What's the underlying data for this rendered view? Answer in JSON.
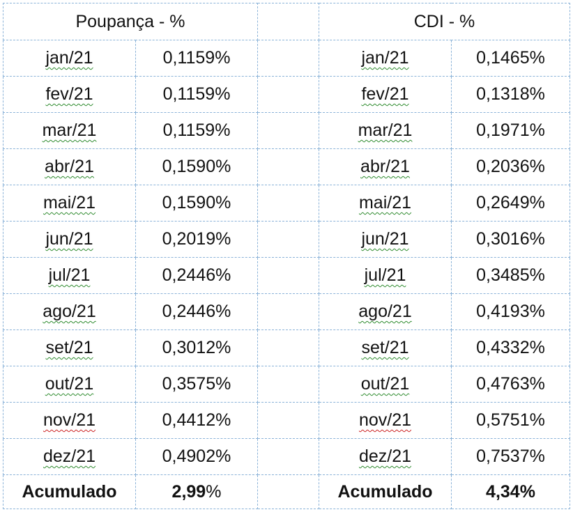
{
  "poupanca": {
    "title": "Poupança - %",
    "rows": [
      {
        "month": "jan/21",
        "value": "0,1159%"
      },
      {
        "month": "fev/21",
        "value": "0,1159%"
      },
      {
        "month": "mar/21",
        "value": "0,1159%"
      },
      {
        "month": "abr/21",
        "value": "0,1590%"
      },
      {
        "month": "mai/21",
        "value": "0,1590%"
      },
      {
        "month": "jun/21",
        "value": "0,2019%"
      },
      {
        "month": "jul/21",
        "value": "0,2446%"
      },
      {
        "month": "ago/21",
        "value": "0,2446%"
      },
      {
        "month": "set/21",
        "value": "0,3012%"
      },
      {
        "month": "out/21",
        "value": "0,3575%"
      },
      {
        "month": "nov/21",
        "value": "0,4412%"
      },
      {
        "month": "dez/21",
        "value": "0,4902%"
      }
    ],
    "total_label": "Acumulado",
    "total_number": "2,99",
    "total_percent": "%"
  },
  "cdi": {
    "title": "CDI - %",
    "rows": [
      {
        "month": "jan/21",
        "value": "0,1465%"
      },
      {
        "month": "fev/21",
        "value": "0,1318%"
      },
      {
        "month": "mar/21",
        "value": "0,1971%"
      },
      {
        "month": "abr/21",
        "value": "0,2036%"
      },
      {
        "month": "mai/21",
        "value": "0,2649%"
      },
      {
        "month": "jun/21",
        "value": "0,3016%"
      },
      {
        "month": "jul/21",
        "value": "0,3485%"
      },
      {
        "month": "ago/21",
        "value": "0,4193%"
      },
      {
        "month": "set/21",
        "value": "0,4332%"
      },
      {
        "month": "out/21",
        "value": "0,4763%"
      },
      {
        "month": "nov/21",
        "value": "0,5751%"
      },
      {
        "month": "dez/21",
        "value": "0,7537%"
      }
    ],
    "total_label": "Acumulado",
    "total_value": "4,34%"
  },
  "colors": {
    "gridline": "#8ab2d8",
    "spellcheck_green": "#2e8b2e",
    "spellcheck_red": "#cc2222"
  }
}
